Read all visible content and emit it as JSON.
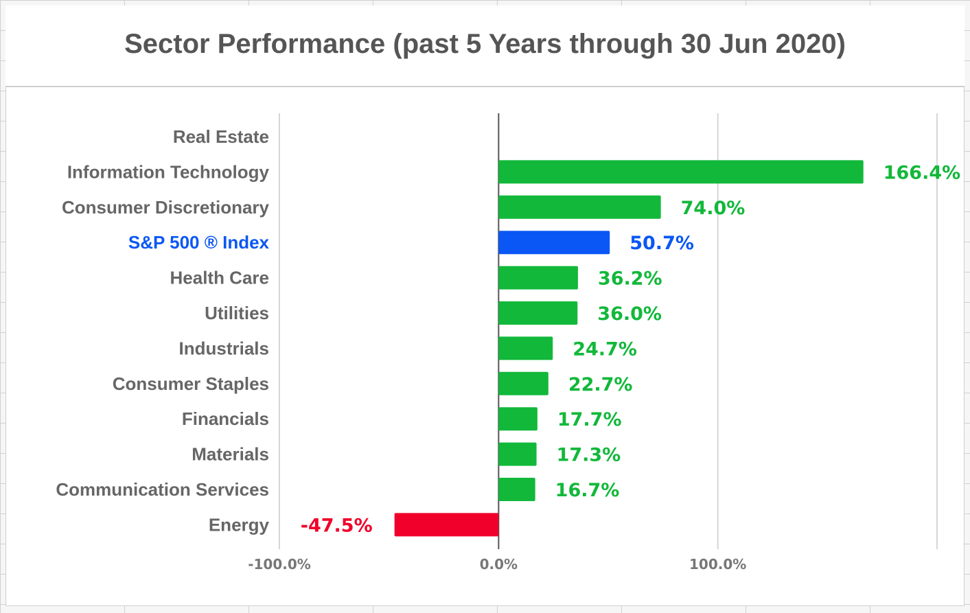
{
  "chart_data": {
    "type": "bar",
    "orientation": "horizontal",
    "title": "Sector Performance (past 5 Years through 30 Jun 2020)",
    "categories": [
      "Real Estate",
      "Information Technology",
      "Consumer Discretionary",
      "S&P 500 ® Index",
      "Health Care",
      "Utilities",
      "Industrials",
      "Consumer Staples",
      "Financials",
      "Materials",
      "Communication Services",
      "Energy"
    ],
    "values": [
      null,
      166.4,
      74.0,
      50.7,
      36.2,
      36.0,
      24.7,
      22.7,
      17.7,
      17.3,
      16.7,
      -47.5
    ],
    "value_labels": [
      "",
      "166.4%",
      "74.0%",
      "50.7%",
      "36.2%",
      "36.0%",
      "24.7%",
      "22.7%",
      "17.7%",
      "17.3%",
      "16.7%",
      "-47.5%"
    ],
    "colors": [
      "#12b83a",
      "#12b83a",
      "#12b83a",
      "#0b57f5",
      "#12b83a",
      "#12b83a",
      "#12b83a",
      "#12b83a",
      "#12b83a",
      "#12b83a",
      "#12b83a",
      "#f0002a"
    ],
    "label_colors": [
      "#666666",
      "#666666",
      "#666666",
      "#0b57f5",
      "#666666",
      "#666666",
      "#666666",
      "#666666",
      "#666666",
      "#666666",
      "#666666",
      "#666666"
    ],
    "xlim": [
      -100,
      200
    ],
    "xticks": [
      -100,
      0,
      100,
      200
    ],
    "xtick_labels": [
      "-100.0%",
      "0.0%",
      "100.0%",
      ""
    ],
    "xlabel": "",
    "ylabel": "",
    "grid": true,
    "legend": "none"
  }
}
